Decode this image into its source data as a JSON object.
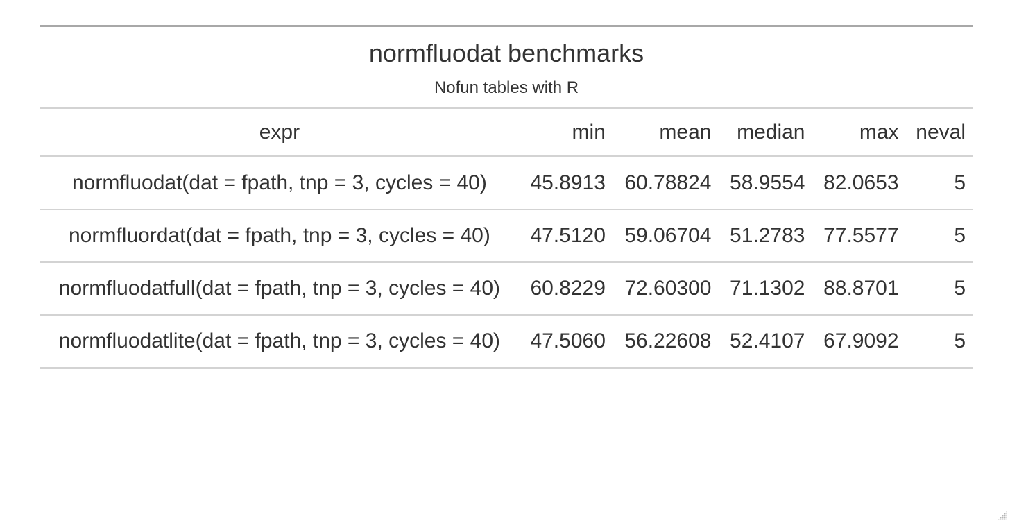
{
  "table": {
    "title": "normfluodat benchmarks",
    "subtitle": "Nofun tables with R",
    "columns": [
      "expr",
      "min",
      "mean",
      "median",
      "max",
      "neval"
    ],
    "rows": [
      [
        "normfluodat(dat = fpath, tnp = 3, cycles = 40)",
        "45.8913",
        "60.78824",
        "58.9554",
        "82.0653",
        "5"
      ],
      [
        "normfluordat(dat = fpath, tnp = 3, cycles = 40)",
        "47.5120",
        "59.06704",
        "51.2783",
        "77.5577",
        "5"
      ],
      [
        "normfluodatfull(dat = fpath, tnp = 3, cycles = 40)",
        "60.8229",
        "72.60300",
        "71.1302",
        "88.8701",
        "5"
      ],
      [
        "normfluodatlite(dat = fpath, tnp = 3, cycles = 40)",
        "47.5060",
        "56.22608",
        "52.4107",
        "67.9092",
        "5"
      ]
    ]
  },
  "icons": {
    "resize_grip": "resize-grip-icon"
  }
}
